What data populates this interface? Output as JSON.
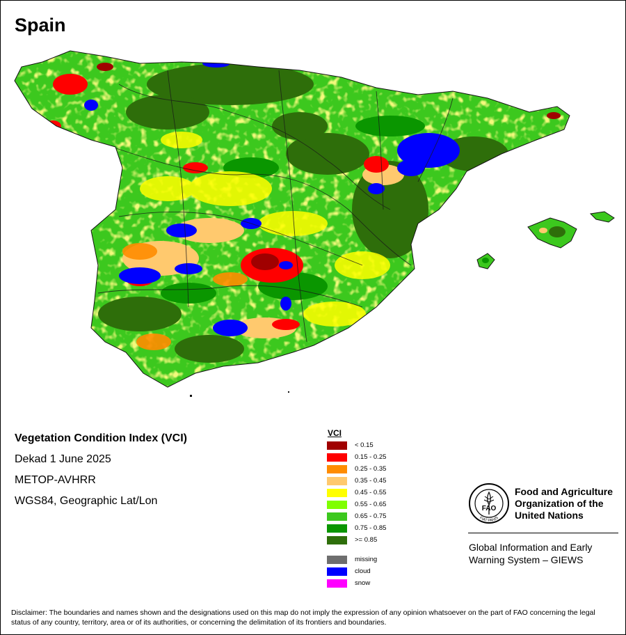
{
  "title": "Spain",
  "info": {
    "index_name": "Vegetation Condition Index (VCI)",
    "period": "Dekad 1 June 2025",
    "sensor": "METOP-AVHRR",
    "projection": "WGS84, Geographic Lat/Lon"
  },
  "legend": {
    "title": "VCI",
    "classes": [
      {
        "label": "< 0.15",
        "color": "#a00000"
      },
      {
        "label": "0.15 - 0.25",
        "color": "#ff0000"
      },
      {
        "label": "0.25 - 0.35",
        "color": "#ff8c00"
      },
      {
        "label": "0.35 - 0.45",
        "color": "#ffc96e"
      },
      {
        "label": "0.45 - 0.55",
        "color": "#ffff00"
      },
      {
        "label": "0.55 - 0.65",
        "color": "#7fff00"
      },
      {
        "label": "0.65 - 0.75",
        "color": "#3cc81e"
      },
      {
        "label": "0.75 - 0.85",
        "color": "#0a9600"
      },
      {
        "label": ">= 0.85",
        "color": "#2e6e0a"
      }
    ],
    "special": [
      {
        "label": "missing",
        "color": "#6e6e6e"
      },
      {
        "label": "cloud",
        "color": "#0000ff"
      },
      {
        "label": "snow",
        "color": "#ff00ff"
      }
    ]
  },
  "organization": {
    "name": "Food and Agriculture Organization of the United Nations",
    "logo_text": "FAO",
    "logo_motto": "FIAT PANIS",
    "system": "Global Information and Early Warning System – GIEWS"
  },
  "disclaimer": "Disclaimer: The boundaries and names shown and the designations used on this map do not imply the expression of any opinion whatsoever on the part of FAO concerning the legal status of any country, territory, area or of its authorities, or concerning the delimitation of its frontiers and boundaries."
}
